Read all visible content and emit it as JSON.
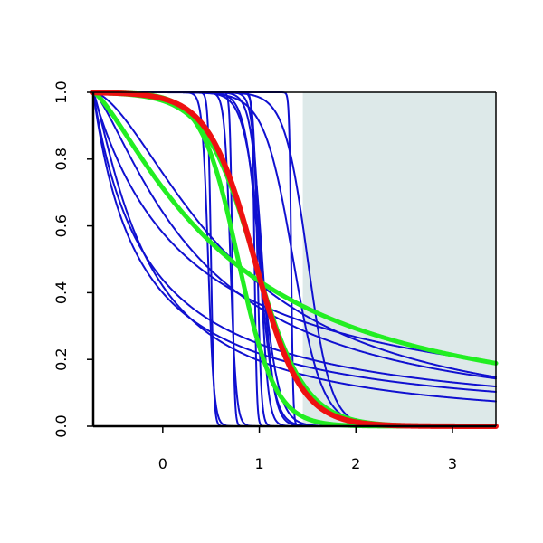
{
  "chart_data": {
    "type": "line",
    "title": "",
    "xlabel": "",
    "ylabel": "",
    "xlim": [
      -0.72,
      3.45
    ],
    "ylim": [
      0,
      1
    ],
    "x_ticks": [
      0,
      1,
      2,
      3
    ],
    "y_ticks": [
      0.0,
      0.2,
      0.4,
      0.6,
      0.8,
      1.0
    ],
    "x_tick_labels": [
      "0",
      "1",
      "2",
      "3"
    ],
    "y_tick_labels": [
      "0.0",
      "0.2",
      "0.4",
      "0.6",
      "0.8",
      "1.0"
    ],
    "shaded_region": {
      "x_from": 1.45,
      "x_to": 3.45,
      "y_from": 0,
      "y_to": 1,
      "color": "#dde9e9"
    },
    "colors": {
      "blue": "#1010d0",
      "red": "#ee1111",
      "green": "#22ee22",
      "axis": "#000000"
    },
    "series": [
      {
        "color": "blue",
        "kind": "logistic",
        "mu": 0.5,
        "s": 0.015
      },
      {
        "color": "blue",
        "kind": "logistic",
        "mu": 0.47,
        "s": 0.03
      },
      {
        "color": "blue",
        "kind": "logistic",
        "mu": 0.72,
        "s": 0.012
      },
      {
        "color": "blue",
        "kind": "logistic",
        "mu": 0.7,
        "s": 0.03
      },
      {
        "color": "blue",
        "kind": "logistic",
        "mu": 0.95,
        "s": 0.012
      },
      {
        "color": "blue",
        "kind": "logistic",
        "mu": 0.98,
        "s": 0.02
      },
      {
        "color": "blue",
        "kind": "logistic",
        "mu": 1.01,
        "s": 0.04
      },
      {
        "color": "blue",
        "kind": "logistic",
        "mu": 1.03,
        "s": 0.06
      },
      {
        "color": "blue",
        "kind": "logistic",
        "mu": 1.0,
        "s": 0.075
      },
      {
        "color": "blue",
        "kind": "logistic",
        "mu": 1.02,
        "s": 0.09
      },
      {
        "color": "blue",
        "kind": "logistic",
        "mu": 1.33,
        "s": 0.01
      },
      {
        "color": "blue",
        "kind": "logistic",
        "mu": 1.5,
        "s": 0.12
      },
      {
        "color": "blue",
        "kind": "logistic",
        "mu": 1.35,
        "s": 0.15
      },
      {
        "color": "blue",
        "kind": "powerdecay",
        "a": 4.2,
        "p": 1.0
      },
      {
        "color": "blue",
        "kind": "powerdecay",
        "a": 8.7,
        "p": 1.0
      },
      {
        "color": "blue",
        "kind": "powerdecay",
        "a": 7.4,
        "p": 1.0
      },
      {
        "color": "blue",
        "kind": "powerdecay",
        "a": 12.4,
        "p": 1.25
      },
      {
        "color": "blue",
        "kind": "powerdecay",
        "a": 6.0,
        "p": 1.35
      },
      {
        "color": "blue",
        "kind": "powerdecay",
        "a": 5.8,
        "p": 1.65
      },
      {
        "color": "green",
        "kind": "logistic",
        "mu": 0.95,
        "s": 0.26
      },
      {
        "color": "green",
        "kind": "logistic",
        "mu": 0.78,
        "s": 0.19
      },
      {
        "color": "green",
        "kind": "powerdecay",
        "a": 4.3,
        "p": 1.35
      },
      {
        "color": "red",
        "kind": "logistic",
        "mu": 0.95,
        "s": 0.24
      }
    ]
  }
}
